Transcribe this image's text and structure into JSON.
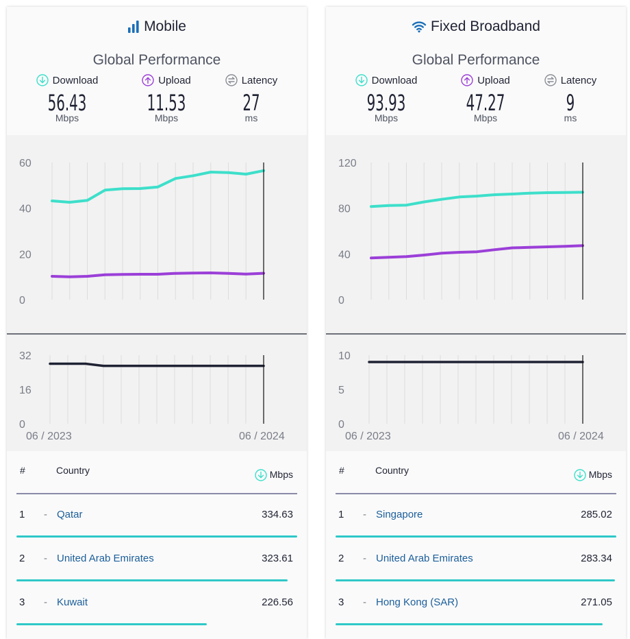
{
  "colors": {
    "download": "#3ddfca",
    "upload": "#9b3fd8",
    "latency": "#1f2233",
    "link": "#1b5e9a",
    "rank_bar": "#2ec8c8"
  },
  "panels": [
    {
      "id": "mobile",
      "title": "Mobile",
      "icon": "signal-bars-icon",
      "subtitle": "Global Performance",
      "metrics": [
        {
          "label": "Download",
          "icon": "download-arrow-icon",
          "value": "56.43",
          "unit": "Mbps"
        },
        {
          "label": "Upload",
          "icon": "upload-arrow-icon",
          "value": "11.53",
          "unit": "Mbps"
        },
        {
          "label": "Latency",
          "icon": "latency-arrows-icon",
          "value": "27",
          "unit": "ms"
        }
      ],
      "ranking": {
        "header": {
          "rank": "#",
          "country": "Country",
          "unit": "Mbps"
        },
        "rows": [
          {
            "rank": "1",
            "dash": "-",
            "country": "Qatar",
            "value": "334.63",
            "value_num": 334.63
          },
          {
            "rank": "2",
            "dash": "-",
            "country": "United Arab Emirates",
            "value": "323.61",
            "value_num": 323.61
          },
          {
            "rank": "3",
            "dash": "-",
            "country": "Kuwait",
            "value": "226.56",
            "value_num": 226.56
          }
        ]
      }
    },
    {
      "id": "fixed",
      "title": "Fixed Broadband",
      "icon": "wifi-icon",
      "subtitle": "Global Performance",
      "metrics": [
        {
          "label": "Download",
          "icon": "download-arrow-icon",
          "value": "93.93",
          "unit": "Mbps"
        },
        {
          "label": "Upload",
          "icon": "upload-arrow-icon",
          "value": "47.27",
          "unit": "Mbps"
        },
        {
          "label": "Latency",
          "icon": "latency-arrows-icon",
          "value": "9",
          "unit": "ms"
        }
      ],
      "ranking": {
        "header": {
          "rank": "#",
          "country": "Country",
          "unit": "Mbps"
        },
        "rows": [
          {
            "rank": "1",
            "dash": "-",
            "country": "Singapore",
            "value": "285.02",
            "value_num": 285.02
          },
          {
            "rank": "2",
            "dash": "-",
            "country": "United Arab Emirates",
            "value": "283.34",
            "value_num": 283.34
          },
          {
            "rank": "3",
            "dash": "-",
            "country": "Hong Kong (SAR)",
            "value": "271.05",
            "value_num": 271.05
          }
        ]
      }
    }
  ],
  "chart_data": [
    {
      "id": "mobile-speed",
      "type": "line",
      "x": [
        "06/2023",
        "07/2023",
        "08/2023",
        "09/2023",
        "10/2023",
        "11/2023",
        "12/2023",
        "01/2024",
        "02/2024",
        "03/2024",
        "04/2024",
        "05/2024",
        "06/2024"
      ],
      "x_tick_labels": [
        "06 / 2023",
        "06 / 2024"
      ],
      "ylim": [
        0,
        60
      ],
      "yticks": [
        0,
        20,
        40,
        60
      ],
      "grid": "vertical",
      "series": [
        {
          "name": "Download",
          "values": [
            43.2,
            42.6,
            43.4,
            47.9,
            48.5,
            48.6,
            49.3,
            53.0,
            54.2,
            55.8,
            55.6,
            54.9,
            56.43
          ]
        },
        {
          "name": "Upload",
          "values": [
            10.2,
            10.0,
            10.2,
            10.9,
            11.0,
            11.1,
            11.1,
            11.5,
            11.6,
            11.7,
            11.5,
            11.2,
            11.53
          ]
        }
      ]
    },
    {
      "id": "mobile-latency",
      "type": "line",
      "x": [
        "06/2023",
        "07/2023",
        "08/2023",
        "09/2023",
        "10/2023",
        "11/2023",
        "12/2023",
        "01/2024",
        "02/2024",
        "03/2024",
        "04/2024",
        "05/2024",
        "06/2024"
      ],
      "x_tick_labels": [
        "06 / 2023",
        "06 / 2024"
      ],
      "ylim": [
        0,
        32
      ],
      "yticks": [
        0,
        16,
        32
      ],
      "grid": "vertical",
      "series": [
        {
          "name": "Latency",
          "values": [
            28,
            28,
            28,
            27,
            27,
            27,
            27,
            27,
            27,
            27,
            27,
            27,
            27
          ]
        }
      ]
    },
    {
      "id": "fixed-speed",
      "type": "line",
      "x": [
        "06/2023",
        "07/2023",
        "08/2023",
        "09/2023",
        "10/2023",
        "11/2023",
        "12/2023",
        "01/2024",
        "02/2024",
        "03/2024",
        "04/2024",
        "05/2024",
        "06/2024"
      ],
      "x_tick_labels": [
        "06 / 2023",
        "06 / 2024"
      ],
      "ylim": [
        0,
        120
      ],
      "yticks": [
        0,
        40,
        80,
        120
      ],
      "grid": "vertical",
      "series": [
        {
          "name": "Download",
          "values": [
            81.5,
            82.4,
            82.7,
            85.5,
            87.8,
            89.8,
            90.6,
            91.8,
            92.4,
            93.2,
            93.6,
            93.7,
            93.93
          ]
        },
        {
          "name": "Upload",
          "values": [
            36.4,
            37.0,
            37.7,
            39.0,
            40.6,
            41.4,
            41.9,
            43.7,
            45.3,
            45.7,
            46.2,
            46.7,
            47.27
          ]
        }
      ]
    },
    {
      "id": "fixed-latency",
      "type": "line",
      "x": [
        "06/2023",
        "07/2023",
        "08/2023",
        "09/2023",
        "10/2023",
        "11/2023",
        "12/2023",
        "01/2024",
        "02/2024",
        "03/2024",
        "04/2024",
        "05/2024",
        "06/2024"
      ],
      "x_tick_labels": [
        "06 / 2023",
        "06 / 2024"
      ],
      "ylim": [
        0,
        10
      ],
      "yticks": [
        0,
        5,
        10
      ],
      "grid": "vertical",
      "series": [
        {
          "name": "Latency",
          "values": [
            9,
            9,
            9,
            9,
            9,
            9,
            9,
            9,
            9,
            9,
            9,
            9,
            9
          ]
        }
      ]
    }
  ]
}
